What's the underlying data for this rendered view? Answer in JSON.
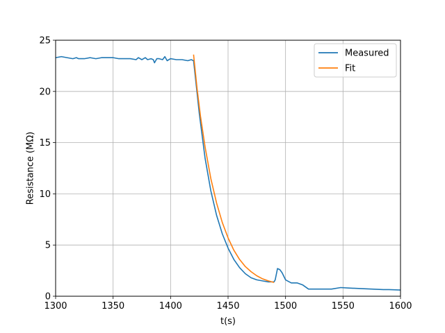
{
  "chart_data": {
    "type": "line",
    "xlabel": "t(s)",
    "ylabel": "Resistance (MΩ)",
    "xlim": [
      1300,
      1600
    ],
    "ylim": [
      0,
      25
    ],
    "xticks": [
      1300,
      1350,
      1400,
      1450,
      1500,
      1550,
      1600
    ],
    "yticks": [
      0,
      5,
      10,
      15,
      20,
      25
    ],
    "grid": true,
    "legend_position": "top-right",
    "series": [
      {
        "name": "Measured",
        "color": "#1f77b4",
        "x": [
          1300,
          1305,
          1310,
          1315,
          1318,
          1320,
          1325,
          1330,
          1335,
          1340,
          1345,
          1350,
          1355,
          1360,
          1365,
          1370,
          1372,
          1375,
          1378,
          1380,
          1383,
          1385,
          1386,
          1388,
          1390,
          1393,
          1395,
          1397,
          1400,
          1405,
          1410,
          1415,
          1418,
          1420,
          1425,
          1430,
          1435,
          1440,
          1445,
          1450,
          1455,
          1460,
          1465,
          1470,
          1475,
          1480,
          1485,
          1490,
          1491,
          1493,
          1495,
          1497,
          1500,
          1505,
          1510,
          1515,
          1520,
          1530,
          1540,
          1548,
          1555,
          1565,
          1575,
          1585,
          1590,
          1600
        ],
        "y": [
          23.3,
          23.4,
          23.3,
          23.2,
          23.3,
          23.2,
          23.2,
          23.3,
          23.2,
          23.3,
          23.3,
          23.3,
          23.2,
          23.2,
          23.2,
          23.1,
          23.3,
          23.1,
          23.3,
          23.1,
          23.2,
          23.1,
          22.8,
          23.2,
          23.2,
          23.1,
          23.4,
          23.0,
          23.2,
          23.1,
          23.1,
          23.0,
          23.1,
          23.0,
          17.8,
          13.5,
          10.3,
          7.9,
          6.1,
          4.7,
          3.6,
          2.8,
          2.2,
          1.8,
          1.6,
          1.5,
          1.4,
          1.4,
          1.6,
          2.7,
          2.6,
          2.3,
          1.6,
          1.3,
          1.3,
          1.1,
          0.7,
          0.7,
          0.7,
          0.85,
          0.8,
          0.75,
          0.7,
          0.65,
          0.65,
          0.6
        ]
      },
      {
        "name": "Fit",
        "color": "#ff7f0e",
        "x": [
          1420,
          1423,
          1426,
          1430,
          1435,
          1440,
          1445,
          1450,
          1455,
          1460,
          1465,
          1470,
          1475,
          1480,
          1485,
          1490
        ],
        "y": [
          23.6,
          20.3,
          17.6,
          14.6,
          11.5,
          9.1,
          7.2,
          5.7,
          4.5,
          3.6,
          2.9,
          2.4,
          2.0,
          1.7,
          1.5,
          1.35
        ]
      }
    ]
  }
}
